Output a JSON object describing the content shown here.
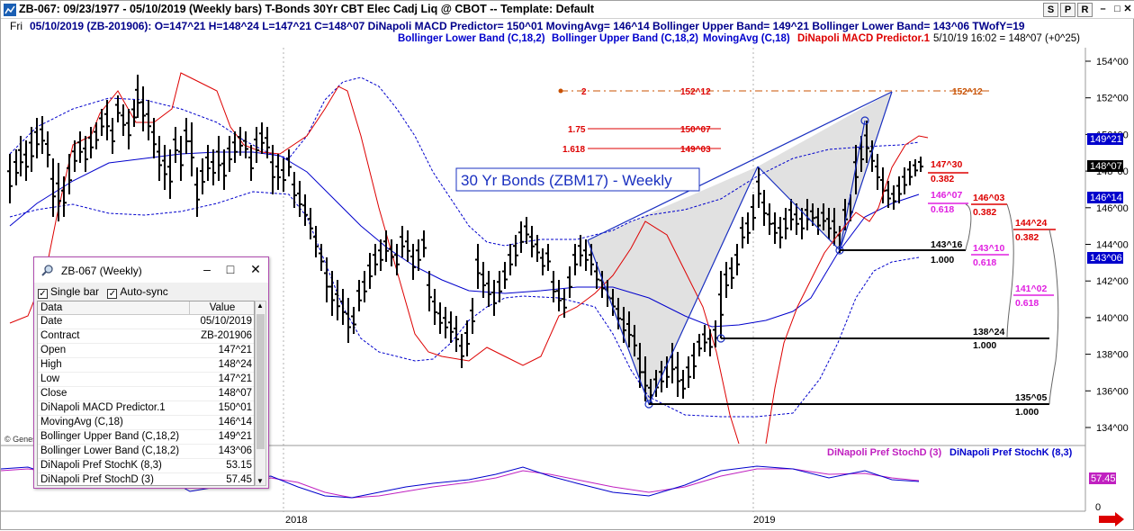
{
  "window": {
    "title": "ZB-067:  09/23/1977 - 05/10/2019  (Weekly bars)   T-Bonds 30Yr CBT Elec Cadj Liq @ CBOT  --  Template: Default",
    "buttons": [
      "S",
      "P",
      "R"
    ]
  },
  "infobar": {
    "day": "Fri",
    "text": "05/10/2019 (ZB-201906):  O=147^21  H=148^24  L=147^21  C=148^07  DiNapoli MACD Predictor= 150^01  MovingAvg= 146^14  Bollinger Upper Band= 149^21  Bollinger Lower Band= 143^06  TWofY=19"
  },
  "legend": {
    "lower_band": "Bollinger Lower Band (C,18,2)",
    "upper_band": "Bollinger Upper Band (C,18,2)",
    "moving_avg": "MovingAvg (C,18)",
    "macd": "DiNapoli MACD Predictor.1",
    "last": "5/10/19 16:02 = 148^07 (+0^25)"
  },
  "chart": {
    "title": "30 Yr Bonds (ZBM17) - Weekly",
    "copyright": "© Genes",
    "x_labels": [
      "2018",
      "2019"
    ],
    "price_labels": [
      "154^00",
      "152^00",
      "150^00",
      "148^00",
      "146^00",
      "144^00",
      "142^00",
      "140^00",
      "138^00",
      "136^00",
      "134^00"
    ],
    "price_tags": {
      "upper": "149^21",
      "last": "148^07",
      "ma": "146^14",
      "lower": "143^06"
    },
    "stoch_tag": "57.45",
    "stoch_axis": "0",
    "stoch_legend_d": "DiNapoli Pref StochD (3)",
    "stoch_legend_k": "DiNapoli Pref StochK (8,3)",
    "fib_top": {
      "ratio": "2",
      "target": "152^12",
      "right": "152^12"
    },
    "fib_175": {
      "ratio": "1.75",
      "target": "150^07"
    },
    "fib_1618": {
      "ratio": "1.618",
      "target": "149^03"
    },
    "retr": [
      {
        "price": "147^30",
        "ratio": "0.382"
      },
      {
        "price": "146^07",
        "ratio": "0.618"
      },
      {
        "price": "146^03",
        "ratio": "0.382"
      },
      {
        "price": "144^24",
        "ratio": "0.382"
      },
      {
        "price": "143^16",
        "ratio": "1.000"
      },
      {
        "price": "143^10",
        "ratio": "0.618"
      },
      {
        "price": "141^02",
        "ratio": "0.618"
      },
      {
        "price": "138^24",
        "ratio": "1.000"
      },
      {
        "price": "135^05",
        "ratio": "1.000"
      }
    ],
    "colors": {
      "upper": "#0000cc",
      "ma": "#0000cc",
      "macd": "#dd0000",
      "fib": "#dd0000",
      "fib_top": "#c85000",
      "magenta": "#e020e0",
      "bars": "#000000"
    }
  },
  "dialog": {
    "title": "ZB-067 (Weekly)",
    "single_bar": "Single bar",
    "auto_sync": "Auto-sync",
    "col_data": "Data",
    "col_value": "Value",
    "rows": [
      [
        "Date",
        "05/10/2019"
      ],
      [
        "Contract",
        "ZB-201906"
      ],
      [
        "Open",
        "147^21"
      ],
      [
        "High",
        "148^24"
      ],
      [
        "Low",
        "147^21"
      ],
      [
        "Close",
        "148^07"
      ],
      [
        "DiNapoli MACD Predictor.1",
        "150^01"
      ],
      [
        "MovingAvg (C,18)",
        "146^14"
      ],
      [
        "Bollinger Upper Band (C,18,2)",
        "149^21"
      ],
      [
        "Bollinger Lower Band (C,18,2)",
        "143^06"
      ],
      [
        "DiNapoli Pref StochK (8,3)",
        "53.15"
      ],
      [
        "DiNapoli Pref StochD (3)",
        "57.45"
      ]
    ]
  }
}
